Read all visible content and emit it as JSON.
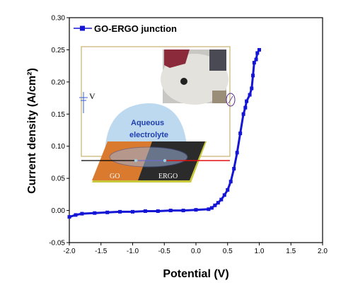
{
  "chart_data": {
    "type": "line",
    "xlabel": "Potential (V)",
    "ylabel": "Current density (A/cm²)",
    "xlim": [
      -2.0,
      2.0
    ],
    "ylim": [
      -0.05,
      0.3
    ],
    "x_ticks": [
      "-2.0",
      "-1.5",
      "-1.0",
      "-0.5",
      "0.0",
      "0.5",
      "1.0",
      "1.5",
      "2.0"
    ],
    "y_ticks": [
      "-0.05",
      "0.00",
      "0.05",
      "0.10",
      "0.15",
      "0.20",
      "0.25",
      "0.30"
    ],
    "legend_position": "top-left",
    "series": [
      {
        "name": "GO-ERGO junction",
        "color": "#1515d6",
        "x": [
          -2.0,
          -1.9,
          -1.8,
          -1.6,
          -1.4,
          -1.2,
          -1.0,
          -0.8,
          -0.6,
          -0.4,
          -0.2,
          0.0,
          0.2,
          0.25,
          0.3,
          0.35,
          0.4,
          0.45,
          0.5,
          0.55,
          0.6,
          0.65,
          0.7,
          0.75,
          0.78,
          0.8,
          0.85,
          0.88,
          0.9,
          0.92,
          0.95,
          0.97,
          1.0
        ],
        "y": [
          -0.01,
          -0.007,
          -0.005,
          -0.004,
          -0.003,
          -0.002,
          -0.002,
          -0.001,
          -0.001,
          0.0,
          0.0,
          0.001,
          0.002,
          0.004,
          0.008,
          0.012,
          0.017,
          0.024,
          0.032,
          0.045,
          0.065,
          0.09,
          0.12,
          0.15,
          0.16,
          0.17,
          0.18,
          0.19,
          0.21,
          0.23,
          0.235,
          0.245,
          0.25
        ]
      }
    ]
  },
  "inset": {
    "voltage_label": "V",
    "electrolyte_label_1": "Aqueous",
    "electrolyte_label_2": "electrolyte",
    "left_material": "GO",
    "right_material": "ERGO"
  }
}
